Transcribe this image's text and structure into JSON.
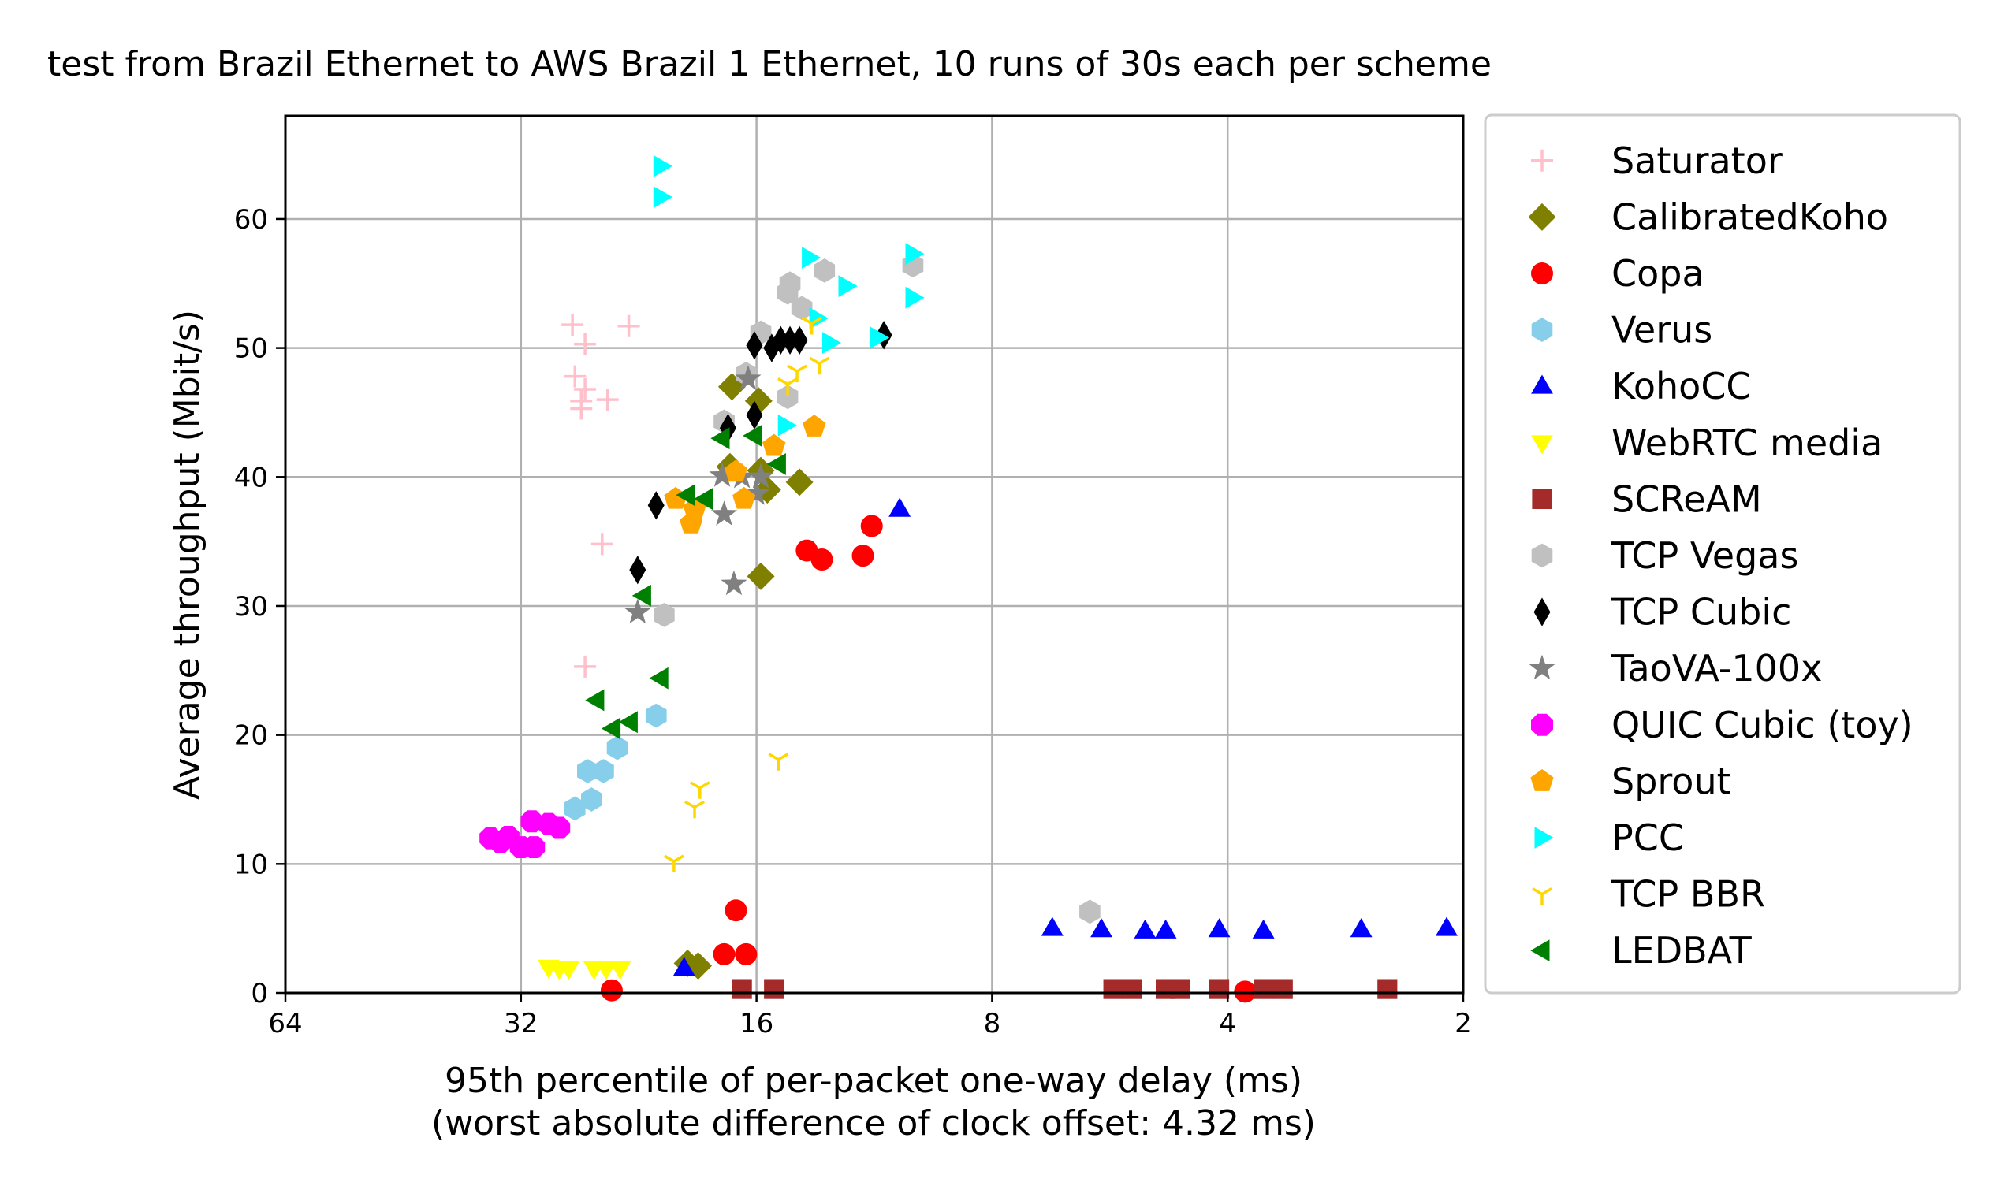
{
  "chart_data": {
    "type": "scatter",
    "title": "test from Brazil Ethernet to AWS Brazil 1 Ethernet, 10 runs of 30s each per scheme",
    "xlabel": "95th percentile of per-packet one-way delay (ms)",
    "xlabel2": "(worst absolute difference of clock offset: 4.32 ms)",
    "ylabel": "Average throughput (Mbit/s)",
    "x_scale": "log2",
    "x_inverted": true,
    "xlim": [
      64,
      2
    ],
    "ylim": [
      0,
      68
    ],
    "x_ticks": [
      64,
      32,
      16,
      8,
      4,
      2
    ],
    "y_ticks": [
      0,
      10,
      20,
      30,
      40,
      50,
      60
    ],
    "grid": true,
    "legend_position": "outside-right",
    "series": [
      {
        "name": "Saturator",
        "marker": "plus",
        "color": "#ffc0cb",
        "points": [
          [
            27.5,
            51.8
          ],
          [
            26.5,
            50.3
          ],
          [
            27.3,
            47.8
          ],
          [
            26.5,
            46.8
          ],
          [
            26.8,
            45.9
          ],
          [
            24.8,
            46.0
          ],
          [
            26.8,
            45.3
          ],
          [
            23.3,
            51.7
          ],
          [
            25.2,
            34.8
          ],
          [
            26.5,
            25.3
          ]
        ]
      },
      {
        "name": "CalibratedKoho",
        "marker": "diamond",
        "color": "#808000",
        "points": [
          [
            17.2,
            47.0
          ],
          [
            15.9,
            45.9
          ],
          [
            17.3,
            40.8
          ],
          [
            15.8,
            40.5
          ],
          [
            15.5,
            39.0
          ],
          [
            14.1,
            39.6
          ],
          [
            15.8,
            32.3
          ],
          [
            19.6,
            2.3
          ],
          [
            19.0,
            2.1
          ]
        ]
      },
      {
        "name": "Copa",
        "marker": "circle",
        "color": "#ff0000",
        "points": [
          [
            11.4,
            36.2
          ],
          [
            13.8,
            34.3
          ],
          [
            13.2,
            33.6
          ],
          [
            11.7,
            33.9
          ],
          [
            17.0,
            6.4
          ],
          [
            17.6,
            3.0
          ],
          [
            16.5,
            3.0
          ],
          [
            24.5,
            0.2
          ],
          [
            3.8,
            0.1
          ]
        ]
      },
      {
        "name": "Verus",
        "marker": "hexagon",
        "color": "#87ceeb",
        "points": [
          [
            21.5,
            21.5
          ],
          [
            24.1,
            19.0
          ],
          [
            26.3,
            17.2
          ],
          [
            25.1,
            17.2
          ],
          [
            26.0,
            15.0
          ],
          [
            27.3,
            14.3
          ]
        ]
      },
      {
        "name": "KohoCC",
        "marker": "triangle-up",
        "color": "#0000ff",
        "points": [
          [
            10.5,
            37.5
          ],
          [
            6.7,
            5.0
          ],
          [
            5.8,
            4.9
          ],
          [
            5.1,
            4.8
          ],
          [
            4.8,
            4.8
          ],
          [
            4.1,
            4.9
          ],
          [
            3.6,
            4.8
          ],
          [
            2.7,
            4.9
          ],
          [
            2.1,
            5.0
          ],
          [
            19.8,
            1.9
          ]
        ]
      },
      {
        "name": "WebRTC media",
        "marker": "triangle-down",
        "color": "#ffff00",
        "points": [
          [
            29.5,
            2.0
          ],
          [
            28.6,
            1.9
          ],
          [
            27.8,
            1.9
          ],
          [
            25.8,
            1.9
          ],
          [
            24.9,
            1.9
          ],
          [
            23.9,
            1.9
          ]
        ]
      },
      {
        "name": "SCReAM",
        "marker": "square",
        "color": "#a52a2a",
        "points": [
          [
            16.7,
            0.3
          ],
          [
            15.2,
            0.3
          ],
          [
            5.6,
            0.3
          ],
          [
            5.3,
            0.3
          ],
          [
            4.8,
            0.3
          ],
          [
            4.6,
            0.3
          ],
          [
            4.1,
            0.3
          ],
          [
            3.6,
            0.3
          ],
          [
            3.4,
            0.3
          ],
          [
            2.5,
            0.3
          ]
        ]
      },
      {
        "name": "TCP Vegas",
        "marker": "hexagon",
        "color": "#c0c0c0",
        "points": [
          [
            14.5,
            55.0
          ],
          [
            14.6,
            54.3
          ],
          [
            13.1,
            56.0
          ],
          [
            10.1,
            56.4
          ],
          [
            14.0,
            53.1
          ],
          [
            15.8,
            51.2
          ],
          [
            16.5,
            48.0
          ],
          [
            14.6,
            46.2
          ],
          [
            17.6,
            44.3
          ],
          [
            21.0,
            29.3
          ],
          [
            6.0,
            6.3
          ]
        ]
      },
      {
        "name": "TCP Cubic",
        "marker": "diamond-thin",
        "color": "#000000",
        "points": [
          [
            16.1,
            50.2
          ],
          [
            15.3,
            50.0
          ],
          [
            14.9,
            50.6
          ],
          [
            14.5,
            50.6
          ],
          [
            14.1,
            50.6
          ],
          [
            11.0,
            51.0
          ],
          [
            17.4,
            43.8
          ],
          [
            16.1,
            44.8
          ],
          [
            21.5,
            37.8
          ],
          [
            22.7,
            32.8
          ]
        ]
      },
      {
        "name": "TaoVA-100x",
        "marker": "star",
        "color": "#808080",
        "points": [
          [
            16.4,
            47.6
          ],
          [
            17.7,
            40.1
          ],
          [
            16.7,
            40.0
          ],
          [
            15.8,
            40.0
          ],
          [
            16.0,
            38.7
          ],
          [
            17.6,
            37.1
          ],
          [
            17.1,
            31.7
          ],
          [
            22.7,
            29.5
          ]
        ]
      },
      {
        "name": "QUIC Cubic (toy)",
        "marker": "octagon",
        "color": "#ff00ff",
        "points": [
          [
            35.0,
            12.0
          ],
          [
            34.0,
            11.7
          ],
          [
            33.2,
            12.1
          ],
          [
            32.0,
            11.3
          ],
          [
            30.8,
            11.3
          ],
          [
            31.0,
            13.3
          ],
          [
            29.5,
            13.1
          ],
          [
            28.6,
            12.8
          ]
        ]
      },
      {
        "name": "Sprout",
        "marker": "pentagon",
        "color": "#ffa500",
        "points": [
          [
            13.5,
            43.9
          ],
          [
            15.2,
            42.4
          ],
          [
            17.0,
            40.4
          ],
          [
            16.6,
            38.3
          ],
          [
            20.3,
            38.3
          ],
          [
            19.2,
            37.5
          ],
          [
            19.4,
            36.4
          ]
        ]
      },
      {
        "name": "PCC",
        "marker": "triangle-right",
        "color": "#00ffff",
        "points": [
          [
            21.2,
            64.1
          ],
          [
            21.2,
            61.7
          ],
          [
            13.7,
            57.0
          ],
          [
            10.1,
            57.3
          ],
          [
            12.3,
            54.8
          ],
          [
            10.1,
            53.9
          ],
          [
            13.4,
            52.3
          ],
          [
            12.9,
            50.4
          ],
          [
            11.2,
            50.8
          ],
          [
            14.7,
            44.0
          ]
        ]
      },
      {
        "name": "TCP BBR",
        "marker": "tri-down",
        "color": "#ffd700",
        "points": [
          [
            13.6,
            51.9
          ],
          [
            14.2,
            48.2
          ],
          [
            14.6,
            47.2
          ],
          [
            13.3,
            48.8
          ],
          [
            18.9,
            15.9
          ],
          [
            19.2,
            14.4
          ],
          [
            20.4,
            10.2
          ],
          [
            15.0,
            18.1
          ]
        ]
      },
      {
        "name": "LEDBAT",
        "marker": "triangle-left",
        "color": "#008000",
        "points": [
          [
            17.7,
            43.0
          ],
          [
            16.1,
            43.2
          ],
          [
            15.0,
            41.0
          ],
          [
            19.6,
            38.6
          ],
          [
            18.6,
            38.3
          ],
          [
            22.3,
            30.8
          ],
          [
            21.2,
            24.4
          ],
          [
            25.6,
            22.7
          ],
          [
            24.4,
            20.5
          ],
          [
            23.2,
            21.0
          ]
        ]
      }
    ]
  }
}
